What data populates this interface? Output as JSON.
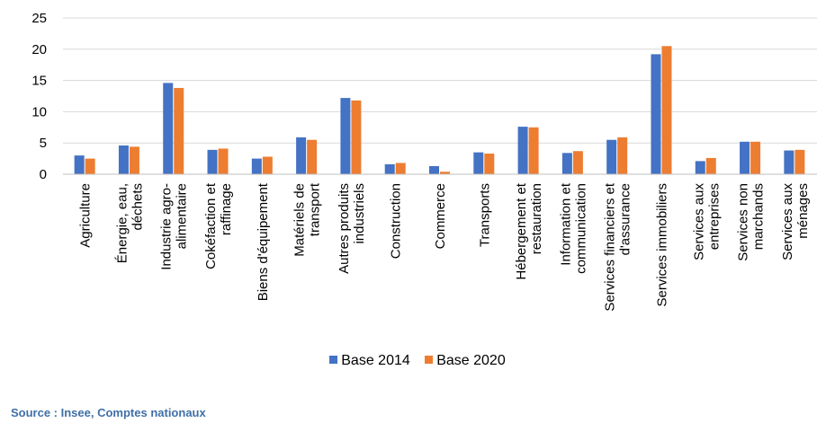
{
  "chart_data": {
    "type": "bar",
    "categories": [
      [
        "Agriculture"
      ],
      [
        "Énergie, eau,",
        "déchets"
      ],
      [
        "Industrie agro-",
        "alimentaire"
      ],
      [
        "Cokéfaction et",
        "raffinage"
      ],
      [
        "Biens d'équipement"
      ],
      [
        "Matériels de",
        "transport"
      ],
      [
        "Autres produits",
        "industriels"
      ],
      [
        "Construction"
      ],
      [
        "Commerce"
      ],
      [
        "Transports"
      ],
      [
        "Hébergement et",
        "restauration"
      ],
      [
        "Information et",
        "communication"
      ],
      [
        "Services financiers et",
        "d'assurance"
      ],
      [
        "Services immobiliers"
      ],
      [
        "Services aux",
        "entreprises"
      ],
      [
        "Services non",
        "marchands"
      ],
      [
        "Services aux",
        "ménages"
      ]
    ],
    "series": [
      {
        "name": "Base 2014",
        "color": "#4472c4",
        "values": [
          3.0,
          4.6,
          14.6,
          3.9,
          2.5,
          5.9,
          12.2,
          1.6,
          1.3,
          3.5,
          7.6,
          3.4,
          5.5,
          19.2,
          2.1,
          5.2,
          3.8
        ]
      },
      {
        "name": "Base 2020",
        "color": "#ed7d31",
        "values": [
          2.5,
          4.4,
          13.8,
          4.1,
          2.8,
          5.5,
          11.8,
          1.8,
          0.4,
          3.3,
          7.5,
          3.7,
          5.9,
          20.5,
          2.6,
          5.2,
          3.9
        ]
      }
    ],
    "yticks": [
      0,
      5,
      10,
      15,
      20,
      25
    ],
    "ylim": [
      0,
      25
    ],
    "grid": true,
    "legend": "bottom",
    "title": "",
    "xlabel": "",
    "ylabel": ""
  },
  "source": "Source : Insee, Comptes nationaux"
}
